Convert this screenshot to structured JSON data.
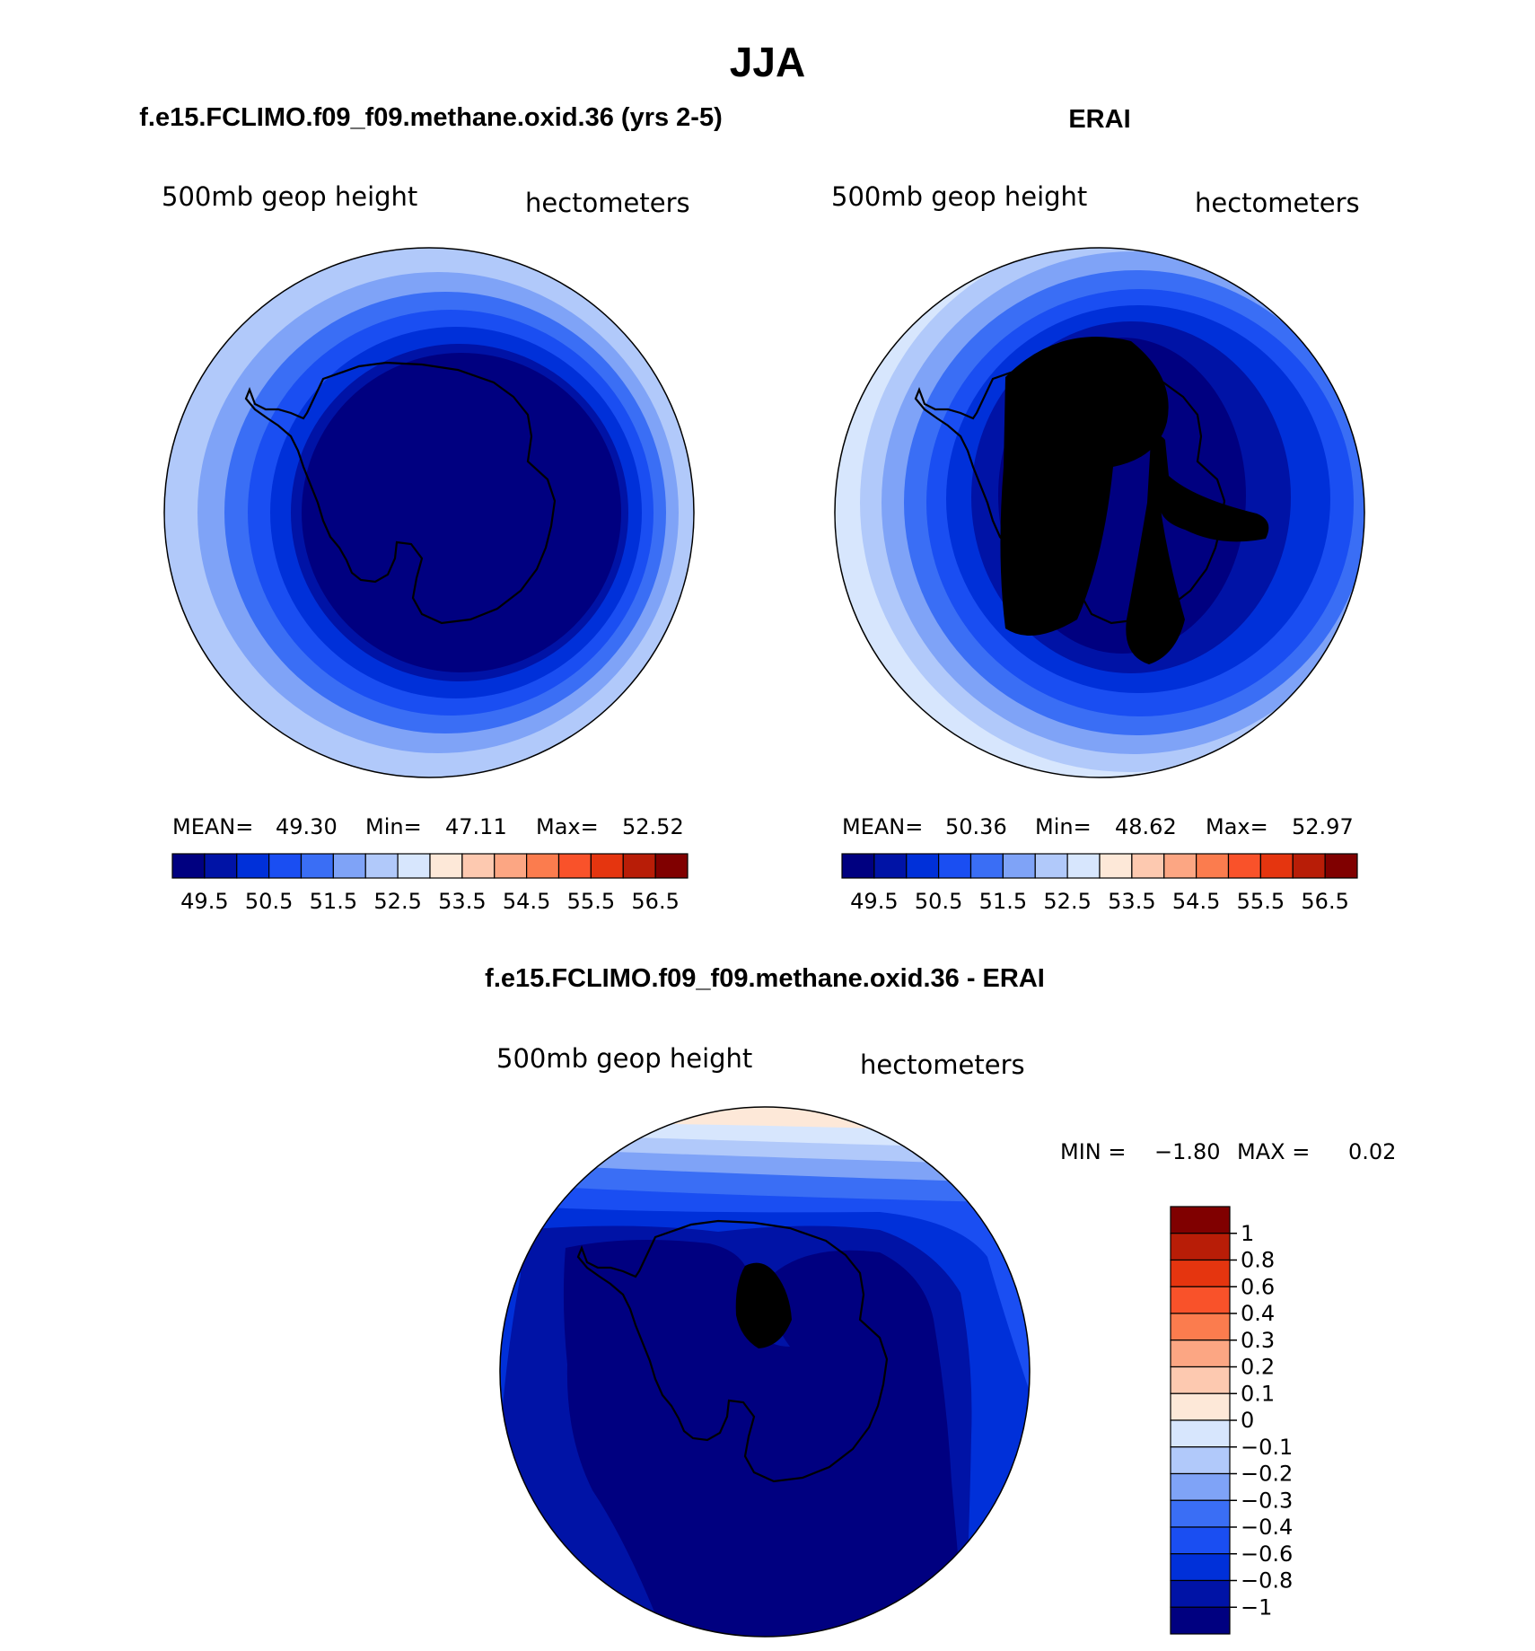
{
  "figure_title": "JJA",
  "panels": [
    {
      "title": "f.e15.FCLIMO.f09_f09.methane.oxid.36 (yrs 2-5)",
      "variable_label": "500mb  geop  height",
      "units_label": "hectometers",
      "stats": {
        "mean_label": "MEAN=",
        "mean": "49.30",
        "min_label": "Min=",
        "min": "47.11",
        "max_label": "Max=",
        "max": "52.52"
      },
      "colorbar": {
        "colors": [
          "#000080",
          "#0013a6",
          "#0030d9",
          "#1a4ef2",
          "#3a6ef5",
          "#7fa3f7",
          "#b1c9fa",
          "#d7e6fd",
          "#fde8d8",
          "#fdc9b0",
          "#fca683",
          "#fb7c4e",
          "#f9522a",
          "#e5350f",
          "#b81d07",
          "#800000"
        ],
        "tick_labels": [
          "49.5",
          "50.5",
          "51.5",
          "52.5",
          "53.5",
          "54.5",
          "55.5",
          "56.5"
        ]
      },
      "map_colors": [
        "#d7e6fd",
        "#b1c9fa",
        "#7fa3f7",
        "#3a6ef5",
        "#1a4ef2",
        "#0030d9",
        "#0013a6",
        "#000080"
      ]
    },
    {
      "title": "ERAI",
      "variable_label": "500mb  geop  height",
      "units_label": "hectometers",
      "stats": {
        "mean_label": "MEAN=",
        "mean": "50.36",
        "min_label": "Min=",
        "min": "48.62",
        "max_label": "Max=",
        "max": "52.97"
      },
      "colorbar": {
        "colors": [
          "#000080",
          "#0013a6",
          "#0030d9",
          "#1a4ef2",
          "#3a6ef5",
          "#7fa3f7",
          "#b1c9fa",
          "#d7e6fd",
          "#fde8d8",
          "#fdc9b0",
          "#fca683",
          "#fb7c4e",
          "#f9522a",
          "#e5350f",
          "#b81d07",
          "#800000"
        ],
        "tick_labels": [
          "49.5",
          "50.5",
          "51.5",
          "52.5",
          "53.5",
          "54.5",
          "55.5",
          "56.5"
        ]
      },
      "map_colors": [
        "#d7e6fd",
        "#b1c9fa",
        "#7fa3f7",
        "#3a6ef5",
        "#1a4ef2",
        "#0030d9",
        "#0013a6",
        "#000080"
      ]
    },
    {
      "title": "f.e15.FCLIMO.f09_f09.methane.oxid.36 - ERAI",
      "variable_label": "500mb  geop  height",
      "units_label": "hectometers",
      "stats": {
        "min_label": "MIN =",
        "min": "−1.80",
        "max_label": "MAX =",
        "max": "0.02"
      },
      "colorbar": {
        "colors": [
          "#800000",
          "#b81d07",
          "#e5350f",
          "#f9522a",
          "#fb7c4e",
          "#fca683",
          "#fdc9b0",
          "#fde8d8",
          "#d7e6fd",
          "#b1c9fa",
          "#7fa3f7",
          "#3a6ef5",
          "#1a4ef2",
          "#0030d9",
          "#0013a6",
          "#000080"
        ],
        "tick_labels": [
          "1",
          "0.8",
          "0.6",
          "0.4",
          "0.3",
          "0.2",
          "0.1",
          "0",
          "−0.1",
          "−0.2",
          "−0.3",
          "−0.4",
          "−0.6",
          "−0.8",
          "−1"
        ]
      },
      "map_colors": [
        "#fde8d8",
        "#d7e6fd",
        "#b1c9fa",
        "#7fa3f7",
        "#3a6ef5",
        "#1a4ef2",
        "#0030d9",
        "#0013a6",
        "#000080"
      ]
    }
  ]
}
